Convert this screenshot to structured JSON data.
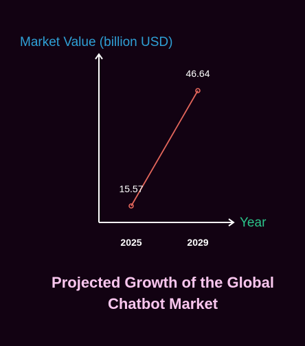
{
  "chart_data": {
    "type": "line",
    "title_lines": [
      "Projected Growth of the Global",
      "Chatbot Market"
    ],
    "xlabel": "Year",
    "ylabel": "Market Value (billion USD)",
    "categories": [
      "2025",
      "2029"
    ],
    "series": [
      {
        "values": [
          15.57,
          46.64
        ],
        "labels": [
          "15.57",
          "46.64"
        ]
      }
    ],
    "grid": false,
    "legend": "none"
  },
  "colors": {
    "background": "#120212",
    "axis": "#ffffff",
    "ylabel": "#2fa0d6",
    "xlabel": "#2bc48a",
    "title": "#f9c6ee",
    "line": "#e4675c",
    "tick": "#ffffff",
    "data_label": "#ffffff"
  }
}
